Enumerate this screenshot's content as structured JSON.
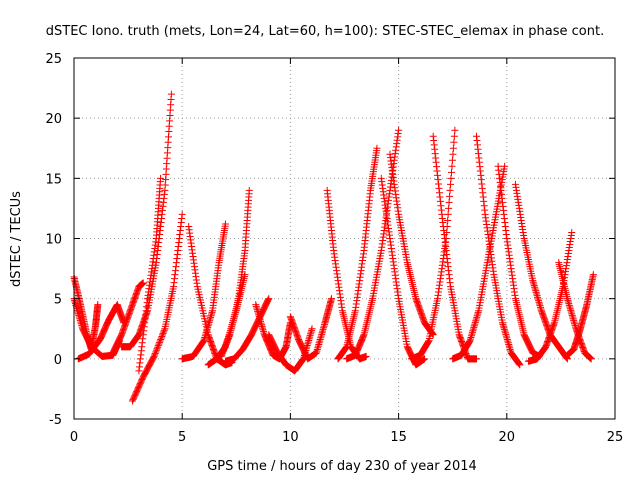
{
  "chart_data": {
    "type": "scatter",
    "title": "dSTEC Iono. truth (mets, Lon=24, Lat=60, h=100): STEC-STEC_elemax in phase cont.",
    "xlabel": "GPS time / hours of day 230 of year 2014",
    "ylabel": "dSTEC  / TECUs",
    "xlim": [
      0,
      25
    ],
    "ylim": [
      -5,
      25
    ],
    "xticks": [
      0,
      5,
      10,
      15,
      20,
      25
    ],
    "yticks": [
      -5,
      0,
      5,
      10,
      15,
      20,
      25
    ],
    "grid": true,
    "marker": "+",
    "color": "#ff0000",
    "series": [
      {
        "x": [
          0.0,
          0.3,
          0.6,
          0.8,
          1.0,
          1.1
        ],
        "y": [
          6.8,
          4.5,
          2.0,
          0.8,
          2.8,
          4.5
        ]
      },
      {
        "x": [
          0.0,
          0.4,
          0.8,
          1.3,
          1.8,
          2.1
        ],
        "y": [
          5.0,
          2.5,
          1.0,
          0.2,
          0.3,
          1.5
        ]
      },
      {
        "x": [
          0.2,
          0.7,
          1.2,
          1.6,
          2.0,
          2.3
        ],
        "y": [
          0.0,
          0.4,
          1.6,
          3.2,
          4.5,
          3.0
        ]
      },
      {
        "x": [
          1.8,
          2.2,
          2.6,
          3.0,
          3.2
        ],
        "y": [
          0.5,
          2.0,
          4.0,
          6.0,
          6.3
        ]
      },
      {
        "x": [
          2.2,
          2.6,
          3.0,
          3.4,
          3.8,
          4.2,
          4.5
        ],
        "y": [
          1.0,
          1.0,
          2.0,
          4.0,
          8.0,
          14.0,
          22.0
        ]
      },
      {
        "x": [
          2.7,
          3.2,
          3.7,
          4.2,
          4.6,
          5.0
        ],
        "y": [
          -3.5,
          -1.5,
          0.2,
          2.5,
          6.0,
          12.0
        ]
      },
      {
        "x": [
          3.0,
          3.4,
          3.8,
          4.0
        ],
        "y": [
          -1.0,
          5.0,
          10.0,
          15.0
        ]
      },
      {
        "x": [
          5.0,
          5.5,
          6.0,
          6.4,
          6.7,
          7.0
        ],
        "y": [
          0.0,
          0.2,
          1.5,
          4.0,
          8.0,
          11.2
        ]
      },
      {
        "x": [
          5.3,
          5.7,
          6.2,
          6.6,
          7.0,
          7.3
        ],
        "y": [
          11.0,
          6.0,
          2.0,
          0.0,
          -0.5,
          -0.3
        ]
      },
      {
        "x": [
          6.2,
          6.6,
          7.0,
          7.5,
          7.9
        ],
        "y": [
          -0.5,
          0.0,
          1.0,
          4.0,
          7.0
        ]
      },
      {
        "x": [
          6.8,
          7.2,
          7.6,
          7.9,
          8.1
        ],
        "y": [
          0.2,
          2.0,
          5.0,
          9.0,
          14.0
        ]
      },
      {
        "x": [
          7.0,
          7.4,
          7.8,
          8.2,
          8.6,
          9.0
        ],
        "y": [
          -0.2,
          0.0,
          0.8,
          2.0,
          3.5,
          5.0
        ]
      },
      {
        "x": [
          8.4,
          8.8,
          9.2,
          9.5,
          9.8,
          10.0
        ],
        "y": [
          4.5,
          2.0,
          0.3,
          0.0,
          1.0,
          3.0
        ]
      },
      {
        "x": [
          9.0,
          9.4,
          9.8,
          10.2,
          10.6,
          11.0
        ],
        "y": [
          2.0,
          0.5,
          -0.5,
          -1.0,
          0.0,
          2.5
        ]
      },
      {
        "x": [
          10.0,
          10.4,
          10.8,
          11.2,
          11.6,
          11.9
        ],
        "y": [
          3.5,
          1.5,
          0.0,
          0.5,
          3.0,
          5.0
        ]
      },
      {
        "x": [
          11.7,
          12.0,
          12.4,
          12.8,
          13.2,
          13.5
        ],
        "y": [
          14.0,
          9.0,
          4.0,
          1.0,
          0.0,
          0.2
        ]
      },
      {
        "x": [
          12.2,
          12.6,
          13.0,
          13.4,
          13.7,
          14.0
        ],
        "y": [
          0.0,
          1.0,
          4.0,
          9.0,
          14.0,
          17.5
        ]
      },
      {
        "x": [
          12.6,
          13.0,
          13.4,
          13.8,
          14.2,
          14.6,
          15.0
        ],
        "y": [
          0.0,
          0.3,
          2.0,
          5.0,
          9.0,
          14.0,
          19.0
        ]
      },
      {
        "x": [
          14.2,
          14.6,
          15.0,
          15.4,
          15.8,
          16.2
        ],
        "y": [
          15.0,
          10.0,
          5.0,
          1.0,
          -0.5,
          0.0
        ]
      },
      {
        "x": [
          14.6,
          15.0,
          15.4,
          15.8,
          16.2,
          16.6
        ],
        "y": [
          17.0,
          12.0,
          8.0,
          5.0,
          3.0,
          2.0
        ]
      },
      {
        "x": [
          15.6,
          16.0,
          16.4,
          16.8,
          17.2,
          17.6
        ],
        "y": [
          0.0,
          0.3,
          1.5,
          5.0,
          10.0,
          19.0
        ]
      },
      {
        "x": [
          16.6,
          17.0,
          17.4,
          17.8,
          18.2,
          18.6
        ],
        "y": [
          18.5,
          12.0,
          6.0,
          2.0,
          0.0,
          0.0
        ]
      },
      {
        "x": [
          17.5,
          17.9,
          18.3,
          18.7,
          19.1,
          19.5,
          19.9
        ],
        "y": [
          0.0,
          0.3,
          1.5,
          4.0,
          8.0,
          12.0,
          16.0
        ]
      },
      {
        "x": [
          18.6,
          19.0,
          19.4,
          19.8,
          20.2,
          20.6
        ],
        "y": [
          18.5,
          12.0,
          7.0,
          3.0,
          0.5,
          -0.5
        ]
      },
      {
        "x": [
          19.6,
          20.0,
          20.4,
          20.8,
          21.2,
          21.5
        ],
        "y": [
          16.0,
          10.0,
          5.0,
          2.0,
          0.5,
          0.2
        ]
      },
      {
        "x": [
          20.4,
          20.8,
          21.2,
          21.6,
          22.0,
          22.4,
          22.8
        ],
        "y": [
          14.5,
          10.0,
          6.5,
          4.0,
          2.0,
          1.0,
          0.0
        ]
      },
      {
        "x": [
          21.0,
          21.4,
          21.8,
          22.2,
          22.6,
          23.0
        ],
        "y": [
          -0.2,
          0.0,
          1.0,
          3.0,
          6.0,
          10.5
        ]
      },
      {
        "x": [
          22.4,
          22.8,
          23.2,
          23.6,
          23.9
        ],
        "y": [
          8.0,
          5.0,
          2.5,
          0.5,
          0.0
        ]
      },
      {
        "x": [
          22.8,
          23.1,
          23.4,
          23.7,
          24.0
        ],
        "y": [
          0.3,
          0.8,
          2.5,
          4.5,
          7.0
        ]
      }
    ]
  }
}
